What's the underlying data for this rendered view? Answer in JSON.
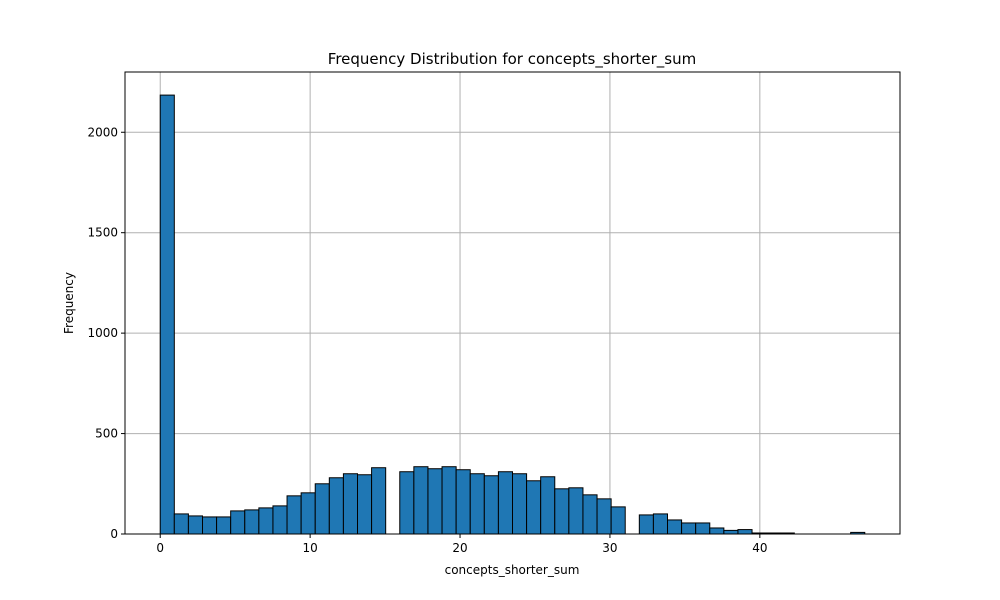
{
  "chart_data": {
    "type": "bar",
    "title": "Frequency Distribution for concepts_shorter_sum",
    "xlabel": "concepts_shorter_sum",
    "ylabel": "Frequency",
    "bin_edges": [
      0,
      0.94,
      1.88,
      2.82,
      3.76,
      4.7,
      5.64,
      6.58,
      7.52,
      8.46,
      9.4,
      10.34,
      11.28,
      12.22,
      13.16,
      14.1,
      15.04,
      15.98,
      16.92,
      17.86,
      18.8,
      19.74,
      20.68,
      21.62,
      22.56,
      23.5,
      24.44,
      25.38,
      26.32,
      27.26,
      28.2,
      29.14,
      30.08,
      31.02,
      31.96,
      32.9,
      33.84,
      34.78,
      35.72,
      36.66,
      37.6,
      38.54,
      39.48,
      40.42,
      41.36,
      42.3,
      43.24,
      44.18,
      45.12,
      46.06,
      47
    ],
    "values": [
      2185,
      100,
      90,
      85,
      85,
      115,
      120,
      130,
      140,
      190,
      205,
      250,
      280,
      300,
      295,
      330,
      0,
      310,
      335,
      325,
      335,
      320,
      300,
      290,
      310,
      300,
      265,
      285,
      225,
      230,
      195,
      175,
      135,
      0,
      95,
      100,
      70,
      55,
      55,
      30,
      18,
      22,
      5,
      5,
      5,
      0,
      0,
      0,
      0,
      8
    ],
    "xlim": [
      -2.35,
      49.35
    ],
    "ylim": [
      0,
      2300
    ],
    "xticks": [
      0,
      10,
      20,
      30,
      40
    ],
    "yticks": [
      0,
      500,
      1000,
      1500,
      2000
    ],
    "grid": true,
    "bar_color": "#1f77b4",
    "edge_color": "#000000"
  }
}
